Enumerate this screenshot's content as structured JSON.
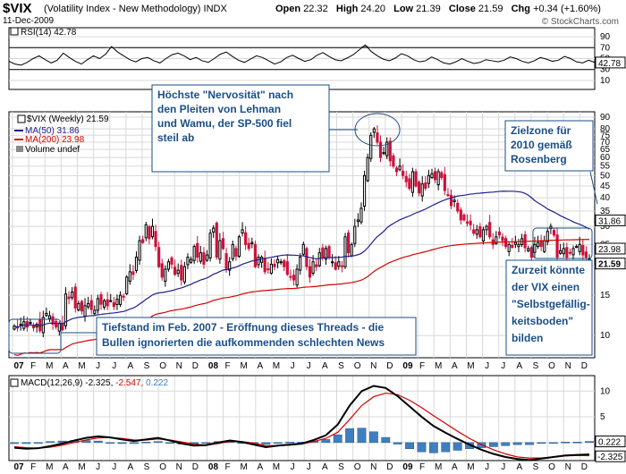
{
  "header": {
    "symbol": "$VIX",
    "description": "(Volatility Index - New Methodology)",
    "exchange": "INDX",
    "date": "11-Dec-2009",
    "open_label": "Open",
    "open": "22.32",
    "high_label": "High",
    "high": "24.20",
    "low_label": "Low",
    "low": "21.39",
    "close_label": "Close",
    "close": "21.59",
    "chg_label": "Chg",
    "chg": "+0.34 (+1.60%)",
    "watermark": "© StockCharts.com"
  },
  "colors": {
    "up": "#000000",
    "down": "#d0103a",
    "ma50": "#1e1e8c",
    "ma200": "#d40000",
    "rsi": "#000000",
    "rsi_fill": "#5a8a5a",
    "hist": "#3f7fbf",
    "note": "#1a4e8a",
    "grid": "#d8d8d8"
  },
  "chart_data": [
    {
      "type": "line",
      "title": "RSI(14) 42.78",
      "legend": [
        "RSI(14) 42.78"
      ],
      "ylim": [
        0,
        100
      ],
      "ticks": [
        10,
        30,
        50,
        70,
        90
      ],
      "reference_lines": [
        30,
        70
      ],
      "last_label": "42.78",
      "values": [
        45,
        40,
        38,
        43,
        50,
        55,
        48,
        42,
        47,
        60,
        52,
        45,
        40,
        48,
        55,
        50,
        58,
        72,
        62,
        55,
        48,
        44,
        50,
        52,
        46,
        42,
        50,
        57,
        60,
        55,
        48,
        52,
        46,
        43,
        50,
        58,
        62,
        54,
        47,
        43,
        49,
        55,
        52,
        46,
        40,
        44,
        52,
        56,
        50,
        45,
        48,
        56,
        61,
        54,
        48,
        46,
        51,
        57,
        66,
        75,
        63,
        55,
        49,
        46,
        51,
        59,
        55,
        48,
        44,
        46,
        53,
        48,
        42,
        40,
        44,
        50,
        45,
        41,
        43,
        48,
        46,
        44,
        47,
        53,
        50,
        45,
        42,
        46,
        52,
        49,
        45,
        47,
        54,
        50,
        44,
        42,
        47,
        43
      ]
    },
    {
      "type": "candlestick",
      "title": "$VIX (Weekly) 21.59",
      "legend": [
        "$VIX (Weekly) 21.59",
        "MA(50) 31.86",
        "MA(200) 23.98",
        "Volume undef"
      ],
      "ylim": [
        8,
        95
      ],
      "yscale": "log",
      "ticks": [
        10,
        15,
        20,
        25,
        30,
        35,
        40,
        45,
        50,
        55,
        60,
        65,
        70,
        75,
        80,
        90
      ],
      "last_labels": {
        "ma50": "31.86",
        "ma200": "23.98",
        "close": "21.59"
      },
      "x_tick_labels": [
        "07",
        "F",
        "M",
        "A",
        "M",
        "J",
        "J",
        "A",
        "S",
        "O",
        "N",
        "D",
        "08",
        "F",
        "M",
        "A",
        "M",
        "J",
        "J",
        "A",
        "S",
        "O",
        "N",
        "D",
        "09",
        "F",
        "M",
        "A",
        "M",
        "J",
        "J",
        "A",
        "S",
        "O",
        "N",
        "D"
      ],
      "closes": [
        11,
        10.8,
        11.2,
        11.5,
        10.9,
        11.4,
        10.8,
        11.2,
        10.5,
        12,
        12.5,
        12.2,
        11.2,
        10.9,
        11.3,
        10.6,
        15.2,
        14.5,
        15.5,
        13.2,
        13.8,
        12.8,
        13.5,
        13.8,
        13,
        12.9,
        14.5,
        13.7,
        14.2,
        13.5,
        14.2,
        13.4,
        14.4,
        15,
        14.8,
        18,
        19,
        18.5,
        22,
        26,
        25.5,
        30.5,
        26.5,
        30,
        24.5,
        20,
        18,
        19.5,
        21,
        20.5,
        18.5,
        19.3,
        17.5,
        20,
        22,
        21.5,
        24.5,
        22,
        23,
        20.5,
        22.5,
        28,
        29.5,
        22,
        26,
        24,
        19.5,
        21,
        25,
        22.2,
        27,
        29,
        25,
        24,
        25.5,
        20,
        22,
        22,
        19,
        19.5,
        20.5,
        20,
        21.5,
        21,
        20,
        18.5,
        18,
        17.5,
        19.5,
        22,
        25,
        20,
        18,
        21,
        20,
        23,
        22,
        24,
        22,
        21,
        19.5,
        21,
        20,
        27,
        23,
        25,
        30,
        32,
        36,
        50,
        60,
        75,
        80,
        70,
        60,
        63,
        70,
        58,
        55,
        52,
        55,
        50,
        47,
        44,
        52,
        45,
        42,
        46,
        44,
        50,
        51,
        48,
        52,
        49,
        43,
        41,
        37,
        39,
        35,
        32,
        32,
        31,
        30.5,
        28,
        29,
        27,
        29,
        30,
        27,
        25,
        27,
        27.5,
        26,
        24.5,
        25,
        24.3,
        25.5,
        25,
        26.5,
        24.2,
        24,
        22,
        25,
        25.5,
        24.5,
        26,
        28.5,
        30,
        27.5,
        22,
        23.5,
        24,
        22,
        23,
        24,
        24.5,
        25,
        22.5,
        22,
        21.6
      ]
    },
    {
      "type": "line",
      "title": "MACD(12,26,9) -2.325, -2.547, 0.222",
      "legend": [
        "MACD(12,26,9) -2.325",
        "-2.547",
        "0.222"
      ],
      "ylim": [
        -3.5,
        13
      ],
      "ticks": [
        0,
        5,
        10
      ],
      "last_labels": {
        "hist": "0.222",
        "macd": "-2.325"
      },
      "series": [
        {
          "name": "MACD",
          "values": [
            -1,
            -1.2,
            -1.1,
            -0.7,
            -0.2,
            0.4,
            0.9,
            1.2,
            1.0,
            0.6,
            0.3,
            0.6,
            0.9,
            0.4,
            -0.2,
            -0.6,
            -0.5,
            0,
            0.4,
            0.1,
            -0.4,
            -0.9,
            -0.6,
            -0.4,
            -0.2,
            0.5,
            1.4,
            3.5,
            7.2,
            10,
            11,
            10.6,
            9,
            7,
            5,
            3.2,
            1.9,
            0.7,
            -0.4,
            -1.4,
            -2.2,
            -2.8,
            -3.2,
            -3.4,
            -3.1,
            -2.8,
            -2.5,
            -2.4,
            -2.3
          ]
        },
        {
          "name": "Signal",
          "values": [
            -0.8,
            -1.0,
            -1.1,
            -0.9,
            -0.5,
            0,
            0.5,
            0.9,
            1.0,
            0.8,
            0.5,
            0.5,
            0.7,
            0.5,
            0.1,
            -0.3,
            -0.5,
            -0.2,
            0.2,
            0.2,
            -0.1,
            -0.6,
            -0.6,
            -0.5,
            -0.3,
            0.2,
            0.8,
            2.0,
            4.5,
            7.2,
            8.9,
            9.6,
            9.3,
            8.2,
            6.8,
            5.2,
            3.7,
            2.2,
            0.8,
            -0.4,
            -1.4,
            -2.2,
            -2.8,
            -3.0,
            -3.0,
            -2.8,
            -2.6,
            -2.5,
            -2.55
          ]
        },
        {
          "name": "Histogram",
          "values": [
            -0.2,
            -0.2,
            0,
            0.2,
            0.3,
            0.4,
            0.4,
            0.3,
            0,
            -0.2,
            -0.2,
            0.1,
            0.2,
            -0.1,
            -0.3,
            -0.3,
            0,
            0.2,
            0.2,
            -0.1,
            -0.3,
            -0.3,
            0,
            0.1,
            0.1,
            0.3,
            0.6,
            1.5,
            2.7,
            2.8,
            2.1,
            1.0,
            -0.3,
            -1.2,
            -1.8,
            -2.0,
            -1.8,
            -1.5,
            -1.2,
            -1.0,
            -0.8,
            -0.6,
            -0.4,
            -0.4,
            -0.1,
            0,
            0.1,
            0.1,
            0.22
          ]
        }
      ]
    }
  ],
  "annotations": {
    "nervositaet": [
      "Höchste \"Nervosität\" nach",
      "den Pleiten von Lehman",
      "und Wamu, der SP-500 fiel",
      "steil ab"
    ],
    "zielzone": [
      "Zielzone für",
      "2010 gemäß",
      "Rosenberg"
    ],
    "tiefstand": [
      "Tiefstand im Feb. 2007 - Eröffnung dieses Threads - die",
      "Bullen ignorierten die aufkommenden schlechten News"
    ],
    "zurzeit": [
      "Zurzeit könnte",
      "der VIX einen",
      "\"Selbstgefällig-",
      "keitsboden\"",
      "bilden"
    ]
  }
}
